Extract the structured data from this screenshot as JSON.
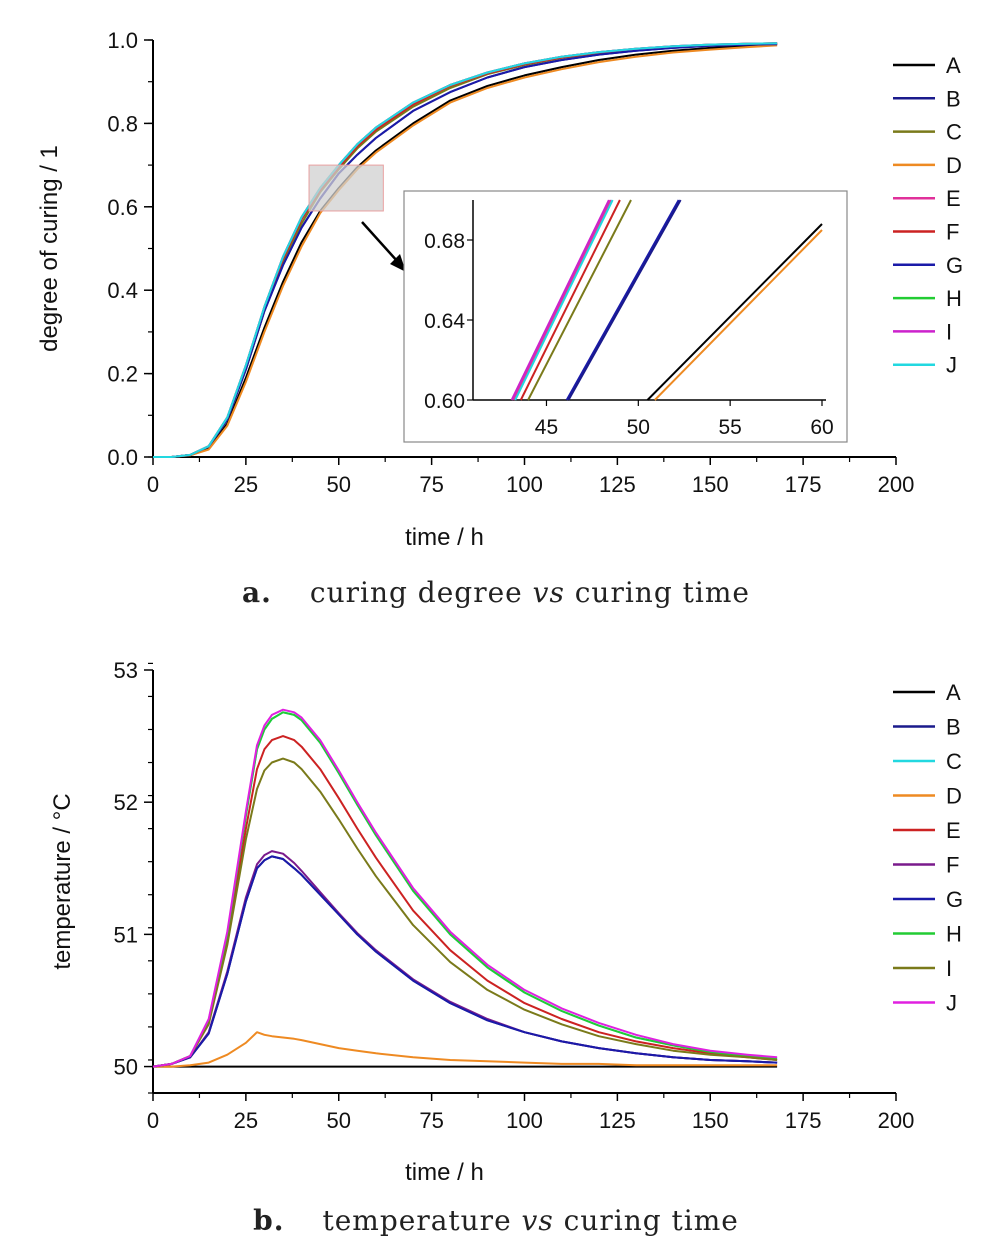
{
  "chart_data": [
    {
      "type": "line",
      "caption": {
        "label": "a.",
        "pre": "curing degree ",
        "italic": "vs",
        "post": " curing time"
      },
      "xlabel": "time / h",
      "ylabel": "degree of curing / 1",
      "xlim": [
        0,
        200
      ],
      "ylim": [
        0,
        1.0
      ],
      "xticks": [
        "0",
        "25",
        "50",
        "75",
        "100",
        "125",
        "150",
        "175",
        "200"
      ],
      "yticks": [
        "0.0",
        "0.2",
        "0.4",
        "0.6",
        "0.8",
        "1.0"
      ],
      "legend_position": "right",
      "x": [
        0,
        5,
        10,
        15,
        20,
        25,
        30,
        35,
        40,
        45,
        50,
        55,
        60,
        70,
        80,
        90,
        100,
        110,
        120,
        130,
        140,
        150,
        160,
        168
      ],
      "series": [
        {
          "name": "A",
          "color": "#000000",
          "values": [
            0,
            0,
            0.004,
            0.02,
            0.08,
            0.19,
            0.31,
            0.42,
            0.515,
            0.59,
            0.645,
            0.695,
            0.735,
            0.8,
            0.855,
            0.89,
            0.915,
            0.935,
            0.952,
            0.965,
            0.974,
            0.981,
            0.986,
            0.99
          ]
        },
        {
          "name": "B",
          "color": "#1a1a8c",
          "values": [
            0,
            0,
            0.005,
            0.025,
            0.09,
            0.21,
            0.35,
            0.46,
            0.55,
            0.62,
            0.68,
            0.725,
            0.765,
            0.83,
            0.875,
            0.91,
            0.935,
            0.952,
            0.965,
            0.974,
            0.981,
            0.986,
            0.989,
            0.99
          ]
        },
        {
          "name": "C",
          "color": "#7a7a1a",
          "values": [
            0,
            0,
            0.005,
            0.025,
            0.09,
            0.21,
            0.35,
            0.47,
            0.56,
            0.635,
            0.69,
            0.74,
            0.78,
            0.84,
            0.885,
            0.918,
            0.94,
            0.957,
            0.968,
            0.977,
            0.983,
            0.987,
            0.99,
            0.991
          ]
        },
        {
          "name": "D",
          "color": "#ee8a22",
          "values": [
            0,
            0,
            0.004,
            0.018,
            0.075,
            0.18,
            0.3,
            0.41,
            0.505,
            0.585,
            0.64,
            0.69,
            0.73,
            0.795,
            0.85,
            0.885,
            0.91,
            0.93,
            0.947,
            0.96,
            0.97,
            0.977,
            0.983,
            0.987
          ]
        },
        {
          "name": "E",
          "color": "#e0309a",
          "values": [
            0,
            0,
            0.005,
            0.026,
            0.095,
            0.22,
            0.36,
            0.48,
            0.575,
            0.645,
            0.7,
            0.75,
            0.79,
            0.85,
            0.892,
            0.922,
            0.944,
            0.96,
            0.971,
            0.979,
            0.985,
            0.989,
            0.991,
            0.992
          ]
        },
        {
          "name": "F",
          "color": "#cc2222",
          "values": [
            0,
            0,
            0.005,
            0.026,
            0.093,
            0.215,
            0.355,
            0.475,
            0.57,
            0.64,
            0.695,
            0.745,
            0.785,
            0.845,
            0.89,
            0.92,
            0.942,
            0.958,
            0.97,
            0.978,
            0.984,
            0.988,
            0.991,
            0.992
          ]
        },
        {
          "name": "G",
          "color": "#1a1aa8",
          "values": [
            0,
            0,
            0.005,
            0.025,
            0.09,
            0.21,
            0.35,
            0.46,
            0.55,
            0.62,
            0.68,
            0.725,
            0.765,
            0.83,
            0.875,
            0.91,
            0.935,
            0.952,
            0.965,
            0.974,
            0.981,
            0.986,
            0.989,
            0.99
          ]
        },
        {
          "name": "H",
          "color": "#22cc33",
          "values": [
            0,
            0,
            0.005,
            0.026,
            0.095,
            0.22,
            0.36,
            0.48,
            0.575,
            0.645,
            0.7,
            0.75,
            0.79,
            0.85,
            0.892,
            0.922,
            0.944,
            0.96,
            0.971,
            0.979,
            0.985,
            0.989,
            0.991,
            0.992
          ]
        },
        {
          "name": "I",
          "color": "#cc22cc",
          "values": [
            0,
            0,
            0.005,
            0.026,
            0.095,
            0.22,
            0.36,
            0.48,
            0.575,
            0.645,
            0.7,
            0.75,
            0.79,
            0.85,
            0.892,
            0.922,
            0.944,
            0.96,
            0.971,
            0.979,
            0.985,
            0.989,
            0.991,
            0.992
          ]
        },
        {
          "name": "J",
          "color": "#22d8e0",
          "values": [
            0,
            0,
            0.005,
            0.026,
            0.095,
            0.22,
            0.36,
            0.48,
            0.575,
            0.645,
            0.7,
            0.75,
            0.79,
            0.85,
            0.892,
            0.922,
            0.944,
            0.96,
            0.971,
            0.979,
            0.985,
            0.989,
            0.991,
            0.992
          ]
        }
      ],
      "inset": {
        "xlim": [
          41,
          60
        ],
        "ylim": [
          0.6,
          0.7
        ],
        "xticks": [
          "45",
          "50",
          "55",
          "60"
        ],
        "yticks": [
          "0.60",
          "0.64",
          "0.68"
        ],
        "highlight_region": {
          "x": [
            42,
            62
          ],
          "y": [
            0.59,
            0.7
          ]
        },
        "series": [
          {
            "name": "E",
            "color": "#e0309a",
            "x": [
              43.2,
              48.5
            ],
            "values": [
              0.6,
              0.7
            ]
          },
          {
            "name": "J",
            "color": "#22d8e0",
            "x": [
              43.3,
              48.6
            ],
            "values": [
              0.6,
              0.7
            ]
          },
          {
            "name": "I",
            "color": "#cc22cc",
            "x": [
              43.1,
              48.4
            ],
            "values": [
              0.6,
              0.7
            ]
          },
          {
            "name": "F",
            "color": "#cc2222",
            "x": [
              43.6,
              49.0
            ],
            "values": [
              0.6,
              0.7
            ]
          },
          {
            "name": "C",
            "color": "#7a7a1a",
            "x": [
              44.0,
              49.6
            ],
            "values": [
              0.6,
              0.7
            ]
          },
          {
            "name": "G",
            "color": "#1a1aa8",
            "x": [
              46.1,
              52.2
            ],
            "values": [
              0.6,
              0.7
            ]
          },
          {
            "name": "B",
            "color": "#1a1a8c",
            "x": [
              46.2,
              52.3
            ],
            "values": [
              0.6,
              0.7
            ]
          },
          {
            "name": "A",
            "color": "#000000",
            "x": [
              50.5,
              60.0
            ],
            "values": [
              0.6,
              0.688
            ]
          },
          {
            "name": "D",
            "color": "#ee8a22",
            "x": [
              50.9,
              60.0
            ],
            "values": [
              0.6,
              0.685
            ]
          }
        ]
      }
    },
    {
      "type": "line",
      "caption": {
        "label": "b.",
        "pre": "temperature ",
        "italic": "vs",
        "post": " curing time"
      },
      "xlabel": "time / h",
      "ylabel": "temperature / °C",
      "xlim": [
        0,
        200
      ],
      "ylim": [
        49.8,
        53
      ],
      "xticks": [
        "0",
        "25",
        "50",
        "75",
        "100",
        "125",
        "150",
        "175",
        "200"
      ],
      "yticks": [
        "50",
        "51",
        "52",
        "53"
      ],
      "legend_position": "right",
      "x": [
        0,
        5,
        10,
        15,
        20,
        25,
        28,
        30,
        32,
        35,
        38,
        40,
        45,
        50,
        55,
        60,
        70,
        80,
        90,
        100,
        110,
        120,
        130,
        140,
        150,
        160,
        168
      ],
      "series": [
        {
          "name": "A",
          "color": "#000000",
          "values": [
            50,
            50,
            50,
            50,
            50,
            50,
            50,
            50,
            50,
            50,
            50,
            50,
            50,
            50,
            50,
            50,
            50,
            50,
            50,
            50,
            50,
            50,
            50,
            50,
            50,
            50,
            50
          ]
        },
        {
          "name": "B",
          "color": "#1a1a8c",
          "values": [
            50,
            50.02,
            50.07,
            50.25,
            50.7,
            51.25,
            51.5,
            51.56,
            51.59,
            51.57,
            51.5,
            51.45,
            51.3,
            51.15,
            51.0,
            50.87,
            50.65,
            50.48,
            50.35,
            50.26,
            50.19,
            50.14,
            50.1,
            50.07,
            50.05,
            50.04,
            50.03
          ]
        },
        {
          "name": "C",
          "color": "#22d8e0",
          "values": [
            50,
            50.02,
            50.08,
            50.35,
            51.0,
            51.9,
            52.4,
            52.55,
            52.63,
            52.68,
            52.66,
            52.62,
            52.45,
            52.22,
            51.98,
            51.75,
            51.33,
            51.0,
            50.75,
            50.56,
            50.42,
            50.31,
            50.22,
            50.16,
            50.11,
            50.08,
            50.06
          ]
        },
        {
          "name": "D",
          "color": "#ee8a22",
          "values": [
            50,
            50.0,
            50.01,
            50.03,
            50.09,
            50.18,
            50.26,
            50.24,
            50.23,
            50.22,
            50.21,
            50.2,
            50.17,
            50.14,
            50.12,
            50.1,
            50.07,
            50.05,
            50.04,
            50.03,
            50.02,
            50.02,
            50.01,
            50.01,
            50.01,
            50.01,
            50.01
          ]
        },
        {
          "name": "E",
          "color": "#cc2222",
          "values": [
            50,
            50.02,
            50.08,
            50.33,
            50.95,
            51.8,
            52.25,
            52.4,
            52.47,
            52.5,
            52.47,
            52.42,
            52.25,
            52.03,
            51.8,
            51.58,
            51.18,
            50.88,
            50.65,
            50.48,
            50.36,
            50.26,
            50.19,
            50.14,
            50.1,
            50.07,
            50.05
          ]
        },
        {
          "name": "F",
          "color": "#7a1a8c",
          "values": [
            50,
            50.02,
            50.07,
            50.26,
            50.72,
            51.28,
            51.53,
            51.6,
            51.63,
            51.61,
            51.54,
            51.48,
            51.32,
            51.16,
            51.01,
            50.88,
            50.66,
            50.49,
            50.36,
            50.26,
            50.19,
            50.14,
            50.1,
            50.07,
            50.05,
            50.04,
            50.03
          ]
        },
        {
          "name": "G",
          "color": "#1a1aa8",
          "values": [
            50,
            50.02,
            50.07,
            50.25,
            50.7,
            51.25,
            51.5,
            51.56,
            51.59,
            51.57,
            51.5,
            51.45,
            51.3,
            51.15,
            51.0,
            50.87,
            50.65,
            50.48,
            50.35,
            50.26,
            50.19,
            50.14,
            50.1,
            50.07,
            50.05,
            50.04,
            50.03
          ]
        },
        {
          "name": "H",
          "color": "#22cc33",
          "values": [
            50,
            50.02,
            50.08,
            50.35,
            51.0,
            51.9,
            52.4,
            52.55,
            52.63,
            52.68,
            52.66,
            52.62,
            52.45,
            52.22,
            51.98,
            51.75,
            51.33,
            51.0,
            50.75,
            50.56,
            50.42,
            50.31,
            50.22,
            50.16,
            50.11,
            50.08,
            50.06
          ]
        },
        {
          "name": "I",
          "color": "#7a7a1a",
          "values": [
            50,
            50.02,
            50.08,
            50.32,
            50.92,
            51.72,
            52.1,
            52.24,
            52.3,
            52.33,
            52.3,
            52.25,
            52.08,
            51.87,
            51.65,
            51.44,
            51.07,
            50.79,
            50.58,
            50.43,
            50.32,
            50.23,
            50.17,
            50.12,
            50.09,
            50.07,
            50.05
          ]
        },
        {
          "name": "J",
          "color": "#e020e0",
          "values": [
            50,
            50.02,
            50.08,
            50.36,
            51.02,
            51.93,
            52.43,
            52.58,
            52.66,
            52.7,
            52.68,
            52.64,
            52.47,
            52.24,
            52.0,
            51.77,
            51.35,
            51.02,
            50.77,
            50.58,
            50.44,
            50.33,
            50.24,
            50.17,
            50.12,
            50.09,
            50.07
          ]
        }
      ]
    }
  ]
}
